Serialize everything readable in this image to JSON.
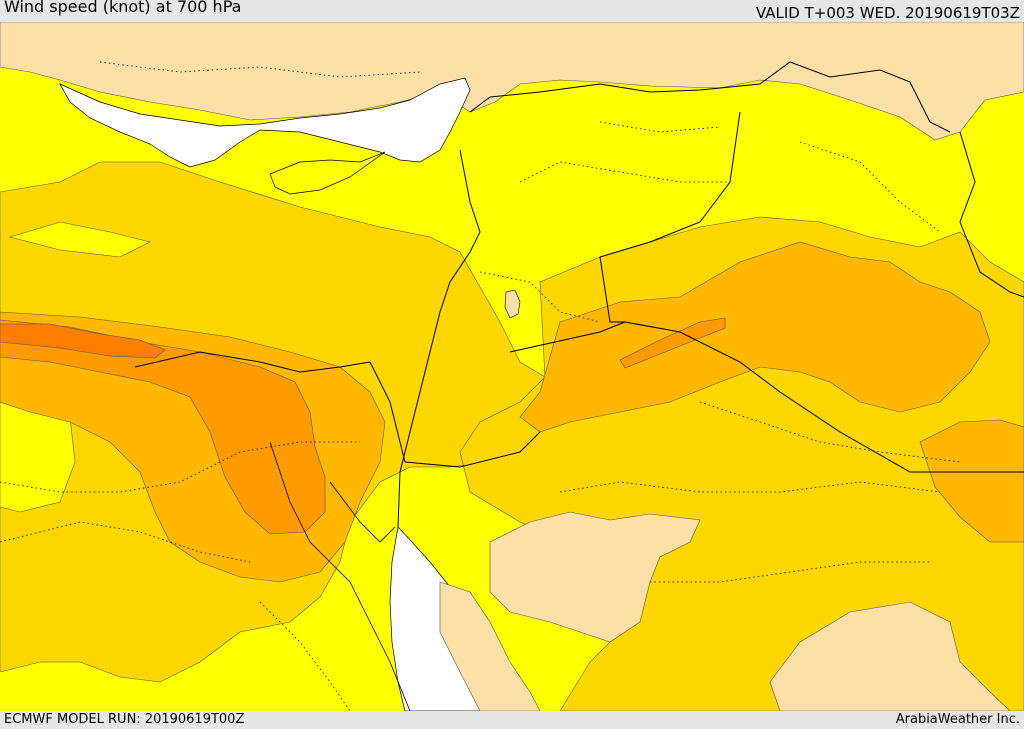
{
  "header": {
    "title": "Wind speed (knot) at 700 hPa",
    "valid_time": "VALID T+003 WED. 20190619T03Z"
  },
  "footer": {
    "model_run": "ECMWF MODEL RUN: 20190619T00Z",
    "credit": "ArabiaWeather Inc."
  },
  "colors": {
    "land_low": "#ffdfa8",
    "level_1": "#ffff00",
    "level_2": "#ffd700",
    "level_3": "#ffb700",
    "level_4": "#ff9a00",
    "level_5": "#ff7e00",
    "sea": "#ffffff",
    "border": "#000000"
  }
}
